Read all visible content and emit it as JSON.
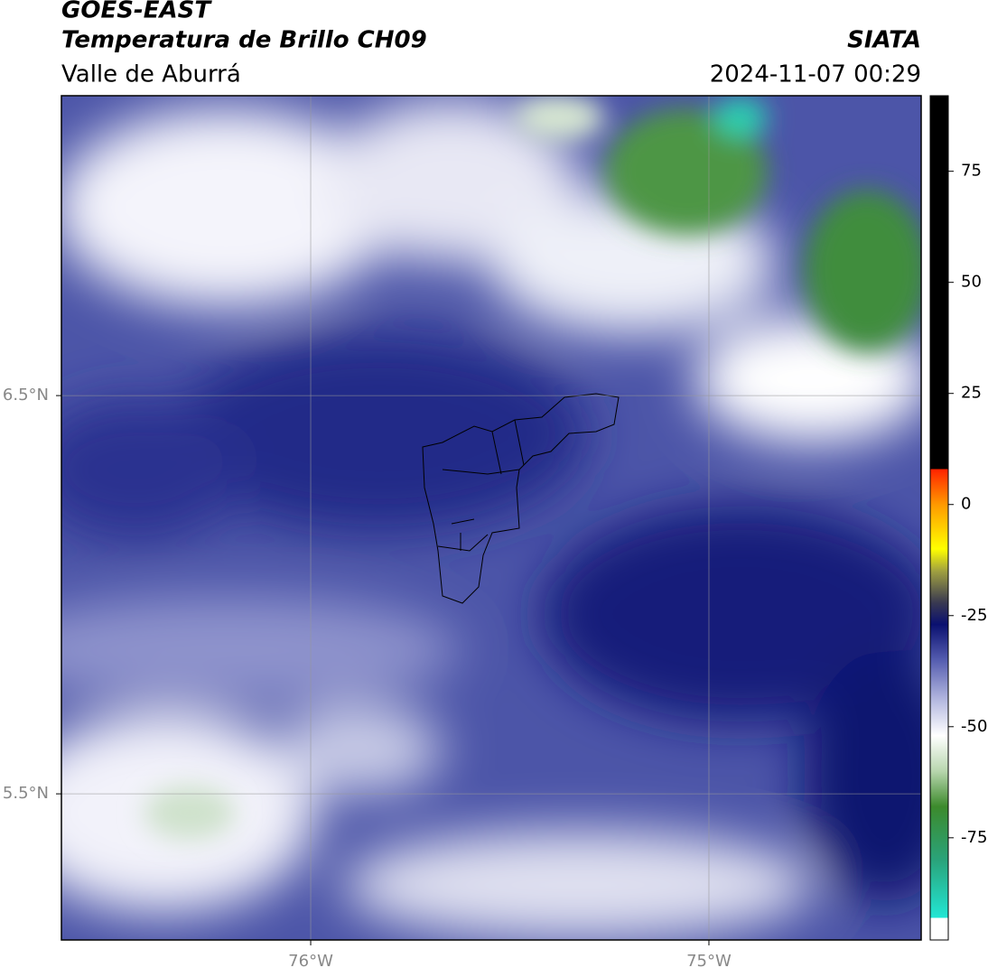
{
  "header": {
    "title": "GOES-EAST",
    "subtitle": "Temperatura de Brillo CH09",
    "region": "Valle de Aburrá",
    "agency": "SIATA",
    "datetime": "2024-11-07 00:29"
  },
  "map": {
    "lonlim": [
      -76.626,
      -74.467
    ],
    "latlim": [
      5.133,
      7.253
    ],
    "lonticks": [
      {
        "value": -76,
        "label": "76°W"
      },
      {
        "value": -75,
        "label": "75°W"
      }
    ],
    "latticks": [
      {
        "value": 6.5,
        "label": "6.5°N"
      },
      {
        "value": 5.5,
        "label": "5.5°N"
      }
    ]
  },
  "colorbar": {
    "lim": [
      -98,
      92
    ],
    "ticks": [
      75,
      50,
      25,
      0,
      -25,
      -50,
      -75
    ],
    "stops": [
      {
        "value": -98,
        "color": "#ffffff"
      },
      {
        "value": -93,
        "color": "#ffffff"
      },
      {
        "value": -93,
        "color": "#22e6d4"
      },
      {
        "value": -80,
        "color": "#2aa37a"
      },
      {
        "value": -68,
        "color": "#3c8a2c"
      },
      {
        "value": -60,
        "color": "#b8d6ae"
      },
      {
        "value": -52,
        "color": "#ffffff"
      },
      {
        "value": -44,
        "color": "#b4b8e0"
      },
      {
        "value": -35,
        "color": "#555db0"
      },
      {
        "value": -27,
        "color": "#0a1070"
      },
      {
        "value": -22,
        "color": "#3a3a50"
      },
      {
        "value": -15,
        "color": "#a0a040"
      },
      {
        "value": -10,
        "color": "#ffff00"
      },
      {
        "value": 0,
        "color": "#ff9900"
      },
      {
        "value": 8,
        "color": "#ff2200"
      },
      {
        "value": 8,
        "color": "#000000"
      },
      {
        "value": 92,
        "color": "#000000"
      }
    ]
  }
}
